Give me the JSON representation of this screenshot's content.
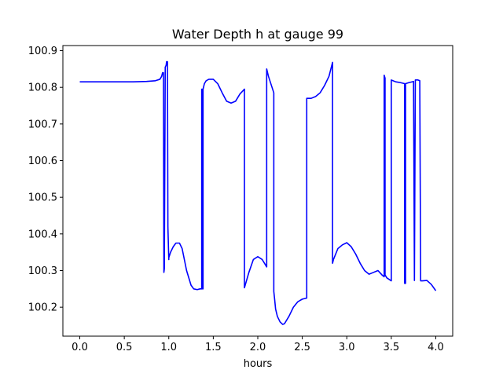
{
  "chart_data": {
    "type": "line",
    "title": "Water Depth h at gauge 99",
    "xlabel": "hours",
    "ylabel": "",
    "xlim": [
      -0.19,
      4.19
    ],
    "ylim": [
      100.121,
      100.914
    ],
    "x_ticks": [
      0.0,
      0.5,
      1.0,
      1.5,
      2.0,
      2.5,
      3.0,
      3.5,
      4.0
    ],
    "x_tick_labels": [
      "0.0",
      "0.5",
      "1.0",
      "1.5",
      "2.0",
      "2.5",
      "3.0",
      "3.5",
      "4.0"
    ],
    "y_ticks": [
      100.2,
      100.3,
      100.4,
      100.5,
      100.6,
      100.7,
      100.8,
      100.9
    ],
    "y_tick_labels": [
      "100.2",
      "100.3",
      "100.4",
      "100.5",
      "100.6",
      "100.7",
      "100.8",
      "100.9"
    ],
    "grid": false,
    "line_color": "#0000ff",
    "series": [
      {
        "x": [
          0.0,
          0.3,
          0.6,
          0.75,
          0.85,
          0.9,
          0.92,
          0.93,
          0.94,
          0.945,
          0.95,
          0.96,
          0.97,
          0.975,
          0.985,
          0.99,
          1.0,
          1.0,
          1.02,
          1.05,
          1.08,
          1.12,
          1.15,
          1.2,
          1.25,
          1.28,
          1.32,
          1.35,
          1.37,
          1.37,
          1.375,
          1.38,
          1.385,
          1.385,
          1.39,
          1.39,
          1.4,
          1.42,
          1.45,
          1.5,
          1.55,
          1.6,
          1.65,
          1.7,
          1.75,
          1.8,
          1.85,
          1.85,
          1.9,
          1.95,
          2.0,
          2.05,
          2.1,
          2.1,
          2.11,
          2.12,
          2.18,
          2.18,
          2.19,
          2.2,
          2.22,
          2.25,
          2.28,
          2.3,
          2.35,
          2.4,
          2.45,
          2.5,
          2.55,
          2.55,
          2.56,
          2.6,
          2.65,
          2.7,
          2.75,
          2.8,
          2.84,
          2.84,
          2.85,
          2.9,
          2.95,
          3.0,
          3.05,
          3.1,
          3.15,
          3.2,
          3.25,
          3.3,
          3.35,
          3.4,
          3.42,
          3.42,
          3.43,
          3.43,
          3.45,
          3.5,
          3.5,
          3.55,
          3.6,
          3.65,
          3.65,
          3.66,
          3.66,
          3.7,
          3.75,
          3.76,
          3.76,
          3.77,
          3.77,
          3.8,
          3.82,
          3.83,
          3.83,
          3.85,
          3.9,
          3.95,
          4.0
        ],
        "values": [
          100.815,
          100.815,
          100.815,
          100.816,
          100.818,
          100.822,
          100.83,
          100.84,
          100.84,
          100.295,
          100.305,
          100.855,
          100.86,
          100.87,
          100.87,
          100.42,
          100.33,
          100.335,
          100.35,
          100.365,
          100.375,
          100.375,
          100.36,
          100.3,
          100.26,
          100.25,
          100.248,
          100.25,
          100.25,
          100.795,
          100.795,
          100.25,
          100.25,
          100.795,
          100.8,
          100.8,
          100.81,
          100.818,
          100.822,
          100.822,
          100.81,
          100.785,
          100.762,
          100.757,
          100.762,
          100.782,
          100.795,
          100.253,
          100.295,
          100.33,
          100.338,
          100.33,
          100.31,
          100.85,
          100.84,
          100.83,
          100.785,
          100.243,
          100.22,
          100.195,
          100.175,
          100.16,
          100.153,
          100.155,
          100.175,
          100.2,
          100.215,
          100.222,
          100.225,
          100.77,
          100.77,
          100.77,
          100.775,
          100.785,
          100.805,
          100.83,
          100.868,
          100.32,
          100.33,
          100.36,
          100.37,
          100.376,
          100.365,
          100.345,
          100.32,
          100.3,
          100.29,
          100.295,
          100.3,
          100.287,
          100.283,
          100.833,
          100.825,
          100.288,
          100.28,
          100.272,
          100.82,
          100.815,
          100.813,
          100.81,
          100.265,
          100.265,
          100.81,
          100.813,
          100.816,
          100.273,
          100.273,
          100.815,
          100.82,
          100.82,
          100.818,
          100.272,
          100.272,
          100.272,
          100.273,
          100.262,
          100.245
        ]
      }
    ]
  }
}
